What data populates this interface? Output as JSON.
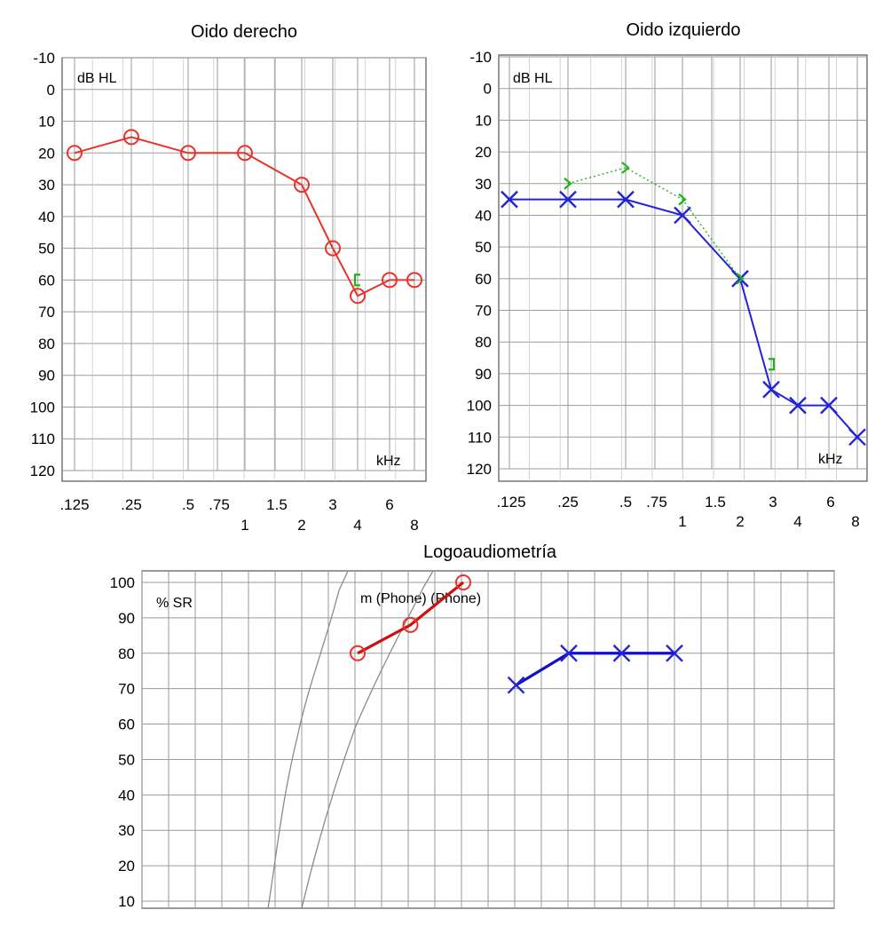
{
  "chart_data": [
    {
      "id": "right",
      "type": "line",
      "title": "Oido derecho",
      "ylabel": "dB HL",
      "xlabel": "kHz",
      "ylim": [
        -10,
        120
      ],
      "y_reversed": true,
      "y_ticks": [
        -10,
        0,
        10,
        20,
        30,
        40,
        50,
        60,
        70,
        80,
        90,
        100,
        110,
        120
      ],
      "x_ticks_top": [
        ".125",
        ".25",
        ".5",
        ".75",
        "1.5",
        "3",
        "6"
      ],
      "x_ticks_bottom": [
        "1",
        "2",
        "4",
        "8"
      ],
      "grid": true,
      "series": [
        {
          "marker": "circle",
          "color": "#e8322a",
          "x": [
            0.125,
            0.25,
            0.5,
            1,
            2,
            3,
            4,
            6,
            8
          ],
          "y": [
            20,
            15,
            20,
            20,
            30,
            50,
            65,
            60,
            60
          ]
        },
        {
          "marker": "bracket-left",
          "color": "#1bb51b",
          "x": [
            4
          ],
          "y": [
            60
          ]
        }
      ]
    },
    {
      "id": "left",
      "type": "line",
      "title": "Oido izquierdo",
      "ylabel": "dB HL",
      "xlabel": "kHz",
      "ylim": [
        -10,
        120
      ],
      "y_reversed": true,
      "y_ticks": [
        -10,
        0,
        10,
        20,
        30,
        40,
        50,
        60,
        70,
        80,
        90,
        100,
        110,
        120
      ],
      "x_ticks_top": [
        ".125",
        ".25",
        ".5",
        ".75",
        "1.5",
        "3",
        "6"
      ],
      "x_ticks_bottom": [
        "1",
        "2",
        "4",
        "8"
      ],
      "grid": true,
      "series": [
        {
          "marker": "cross",
          "color": "#2323d6",
          "x": [
            0.125,
            0.25,
            0.5,
            1,
            2,
            3,
            4,
            6,
            8
          ],
          "y": [
            35,
            35,
            35,
            40,
            60,
            95,
            100,
            100,
            110
          ]
        },
        {
          "marker": "chevron",
          "color": "#1bb51b",
          "dotted": true,
          "x": [
            0.25,
            0.5,
            1,
            2
          ],
          "y": [
            30,
            25,
            35,
            60
          ]
        },
        {
          "marker": "bracket-right",
          "color": "#1bb51b",
          "x": [
            3
          ],
          "y": [
            87
          ]
        }
      ]
    },
    {
      "id": "speech",
      "type": "line",
      "title": "Logoaudiometría",
      "ylabel": "% SR",
      "annotation": "m (Phone) (Phone)",
      "ylim": [
        10,
        100
      ],
      "y_ticks": [
        100,
        90,
        80,
        70,
        60,
        50,
        40,
        30,
        20,
        10
      ],
      "grid": true,
      "series": [
        {
          "marker": "circle",
          "color": "#e8322a",
          "x": [
            40,
            50,
            60
          ],
          "y": [
            80,
            88,
            100
          ]
        },
        {
          "marker": "cross",
          "color": "#2323d6",
          "x": [
            70,
            80,
            90,
            100
          ],
          "y": [
            71,
            80,
            80,
            80
          ]
        }
      ]
    }
  ]
}
